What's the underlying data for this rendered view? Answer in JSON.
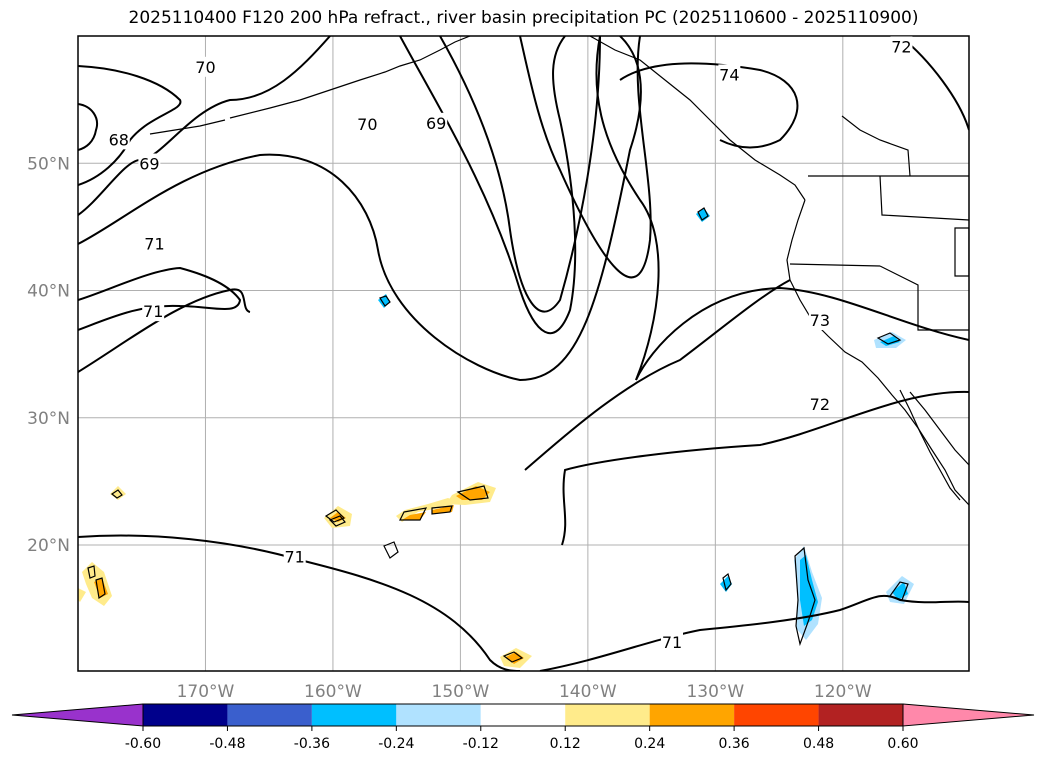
{
  "title": "2025110400 F120 200 hPa refract., river basin precipitation PC (2025110600 - 2025110900)",
  "map": {
    "lat_labels": [
      {
        "value": 50,
        "text": "50°N"
      },
      {
        "value": 40,
        "text": "40°N"
      },
      {
        "value": 30,
        "text": "30°N"
      },
      {
        "value": 20,
        "text": "20°N"
      }
    ],
    "lon_labels": [
      {
        "value": -170,
        "text": "170°W"
      },
      {
        "value": -160,
        "text": "160°W"
      },
      {
        "value": -150,
        "text": "150°W"
      },
      {
        "value": -140,
        "text": "140°W"
      },
      {
        "value": -130,
        "text": "130°W"
      },
      {
        "value": -120,
        "text": "120°W"
      }
    ],
    "contour_labels": [
      {
        "text": "70",
        "lon": -170.0,
        "lat": 57.5
      },
      {
        "text": "68",
        "lon": -176.8,
        "lat": 51.8
      },
      {
        "text": "69",
        "lon": -174.4,
        "lat": 49.9
      },
      {
        "text": "71",
        "lon": -174.0,
        "lat": 43.6
      },
      {
        "text": "71",
        "lon": -174.1,
        "lat": 38.3
      },
      {
        "text": "70",
        "lon": -157.3,
        "lat": 53.0
      },
      {
        "text": "69",
        "lon": -151.9,
        "lat": 53.1
      },
      {
        "text": "74",
        "lon": -128.9,
        "lat": 56.9
      },
      {
        "text": "72",
        "lon": -115.4,
        "lat": 59.1
      },
      {
        "text": "73",
        "lon": -121.8,
        "lat": 37.6
      },
      {
        "text": "72",
        "lon": -121.8,
        "lat": 31.0
      },
      {
        "text": "71",
        "lon": -163.0,
        "lat": 19.0
      },
      {
        "text": "71",
        "lon": -133.4,
        "lat": 12.3
      }
    ]
  },
  "colorbar": {
    "colors": [
      "#9932cc",
      "#00008b",
      "#3a5fcd",
      "#00bfff",
      "#b0e2ff",
      "#ffffff",
      "#ffeb8b",
      "#ffa500",
      "#ff4500",
      "#b22222",
      "#ff88aa"
    ],
    "ticks": [
      "-0.60",
      "-0.48",
      "-0.36",
      "-0.24",
      "-0.12",
      "0.12",
      "0.24",
      "0.36",
      "0.48",
      "0.60"
    ]
  },
  "colors": {
    "grid": "#b0b0b0",
    "coast": "#000000",
    "contour": "#000000",
    "positive_light": "#ffeb8b",
    "positive_mid": "#ffa500",
    "negative_light": "#b0e2ff",
    "negative_mid": "#00bfff"
  }
}
